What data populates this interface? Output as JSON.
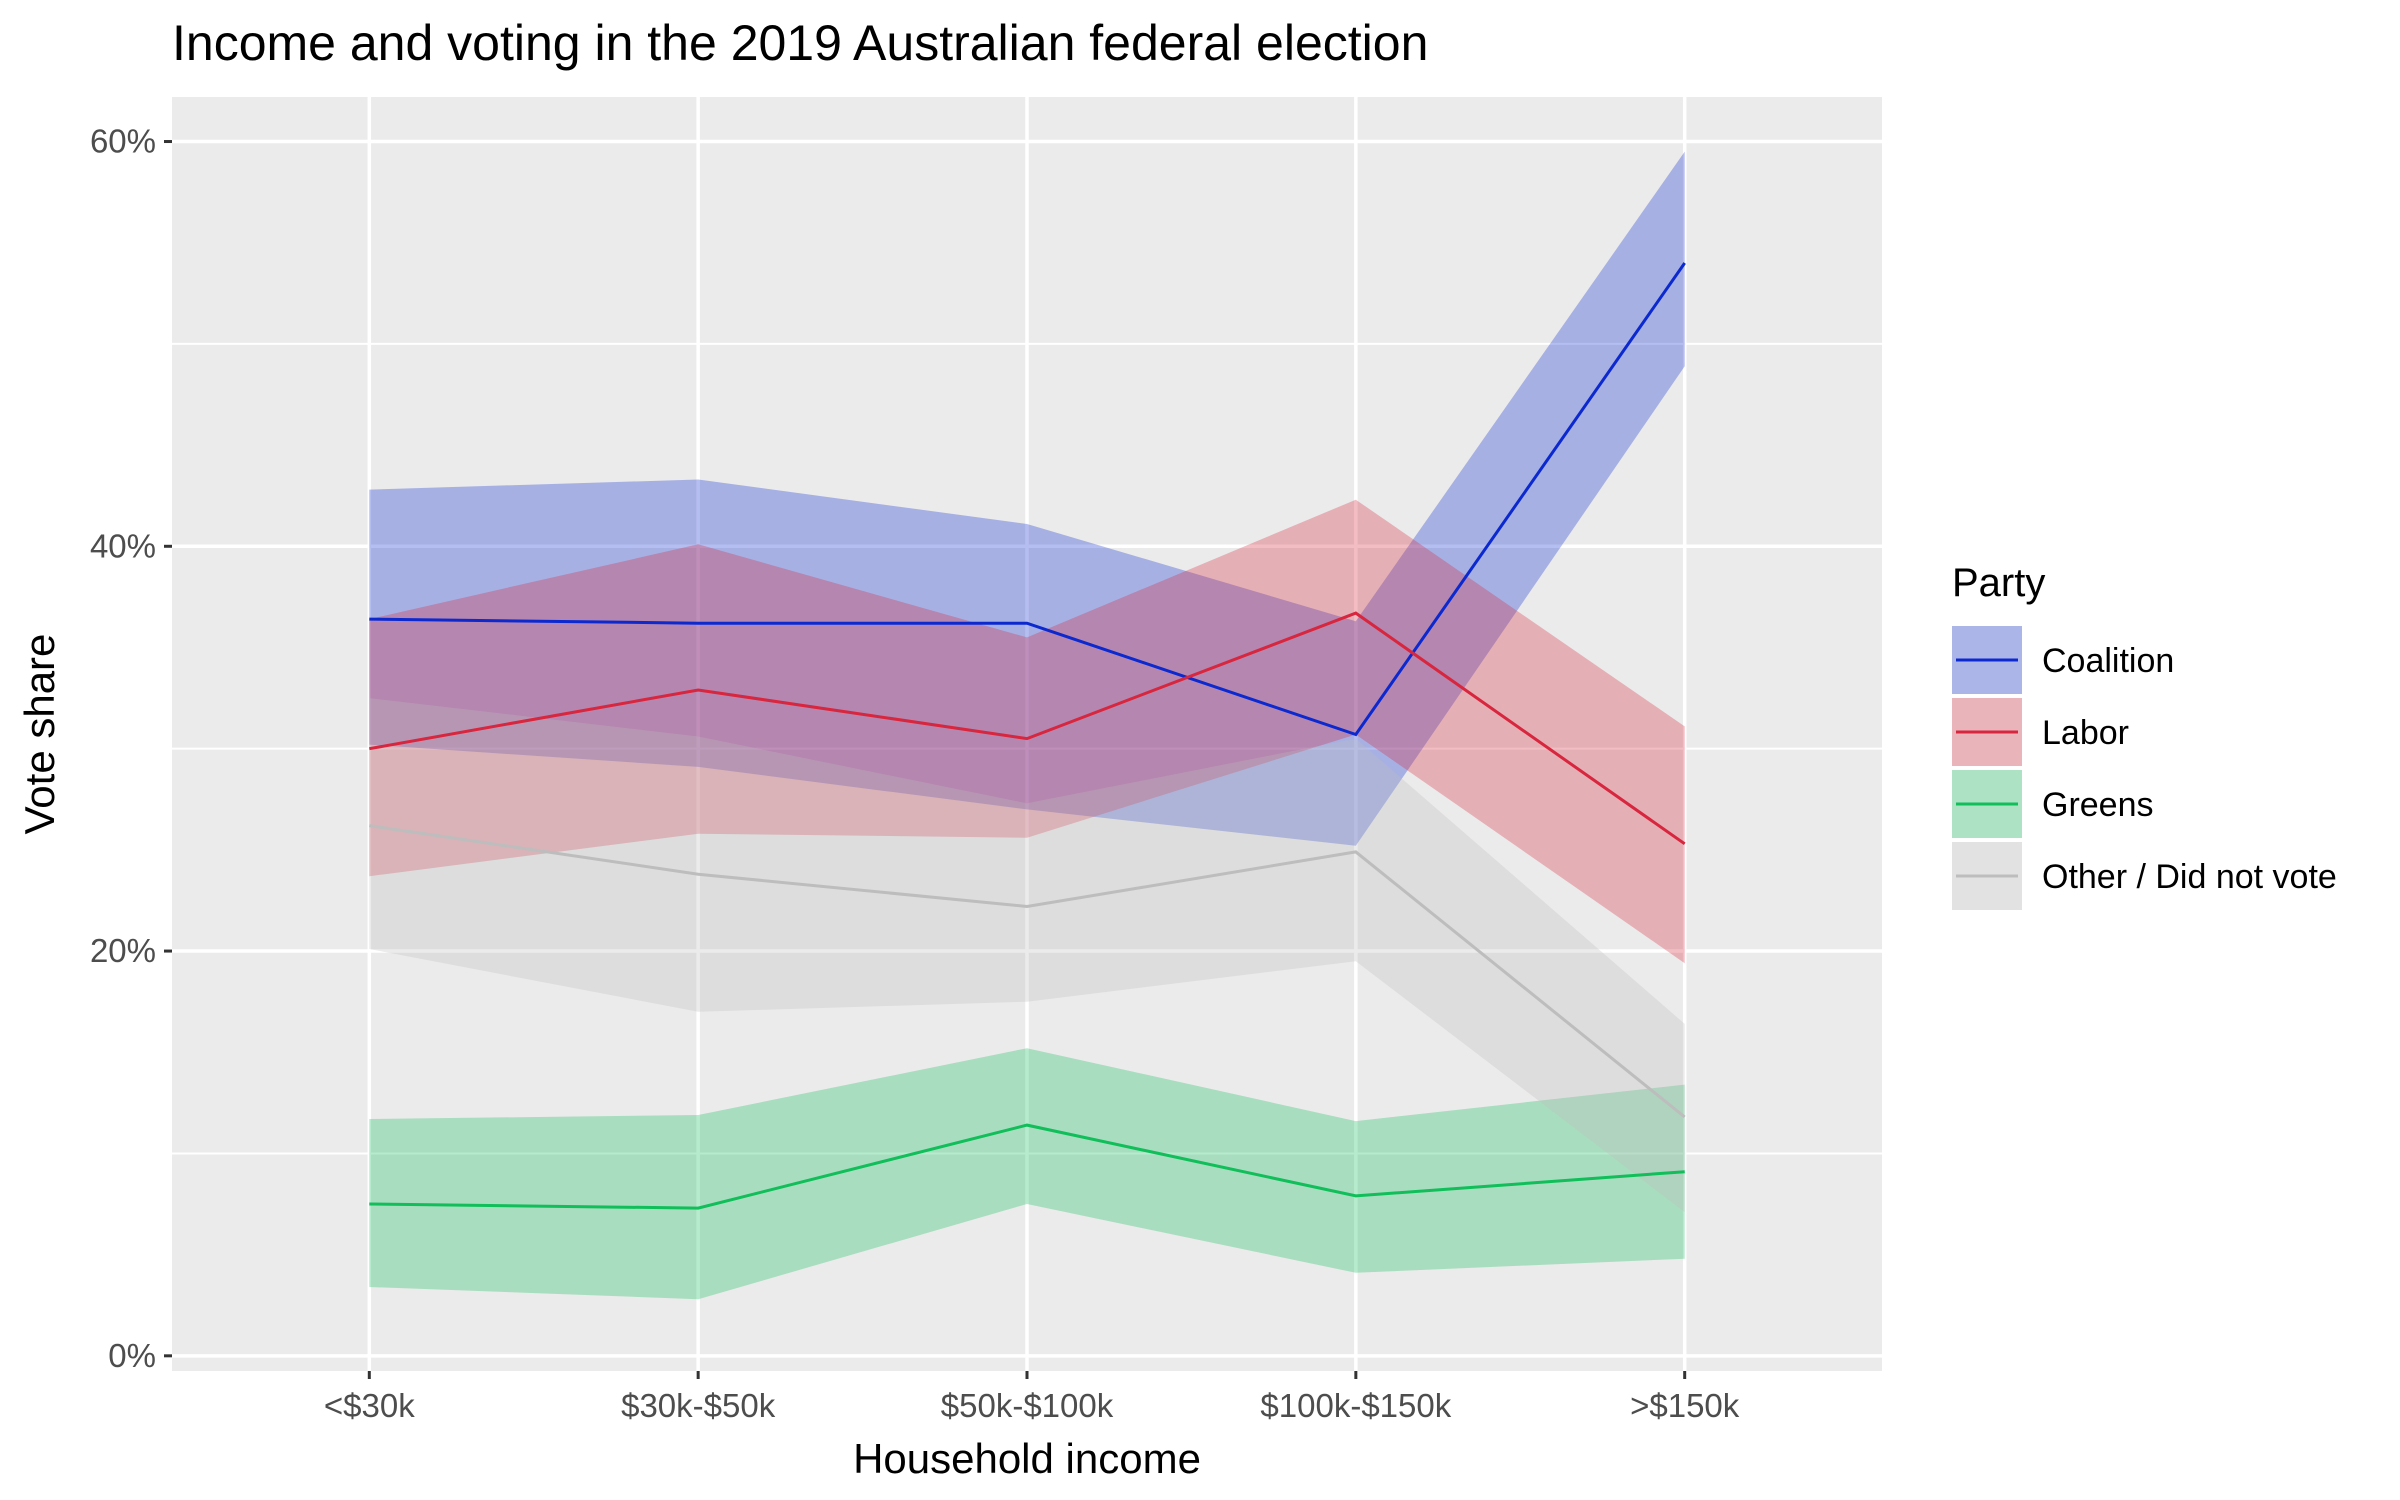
{
  "chart_data": {
    "type": "line",
    "title": "Income and voting in the 2019 Australian federal election",
    "xlabel": "Household income",
    "ylabel": "Vote share",
    "categories": [
      "<$30k",
      "$30k-$50k",
      "$50k-$100k",
      "$100k-$150k",
      ">$150k"
    ],
    "y_ticks": [
      0,
      0.2,
      0.4,
      0.6
    ],
    "y_tick_labels": [
      "0%",
      "20%",
      "40%",
      "60%"
    ],
    "ylim": [
      -0.0075,
      0.622
    ],
    "grid": true,
    "background": "#ebebeb",
    "legend": {
      "title": "Party",
      "placement": "right"
    },
    "series": [
      {
        "name": "Coalition",
        "color": "#0b29cf",
        "values": [
          0.364,
          0.362,
          0.362,
          0.307,
          0.54
        ],
        "lower": [
          0.302,
          0.291,
          0.27,
          0.252,
          0.489
        ],
        "upper": [
          0.428,
          0.433,
          0.411,
          0.363,
          0.595
        ]
      },
      {
        "name": "Labor",
        "color": "#d7263d",
        "values": [
          0.3,
          0.329,
          0.305,
          0.367,
          0.253
        ],
        "lower": [
          0.237,
          0.258,
          0.256,
          0.307,
          0.194
        ],
        "upper": [
          0.364,
          0.401,
          0.355,
          0.423,
          0.311
        ]
      },
      {
        "name": "Greens",
        "color": "#10be5a",
        "values": [
          0.075,
          0.073,
          0.114,
          0.079,
          0.091
        ],
        "lower": [
          0.034,
          0.028,
          0.075,
          0.041,
          0.048
        ],
        "upper": [
          0.117,
          0.119,
          0.152,
          0.116,
          0.134
        ]
      },
      {
        "name": "Other / Did not vote",
        "color": "#bdbdbd",
        "values": [
          0.262,
          0.238,
          0.222,
          0.249,
          0.118
        ],
        "lower": [
          0.201,
          0.17,
          0.175,
          0.195,
          0.071
        ],
        "upper": [
          0.325,
          0.306,
          0.273,
          0.305,
          0.164
        ]
      }
    ]
  }
}
